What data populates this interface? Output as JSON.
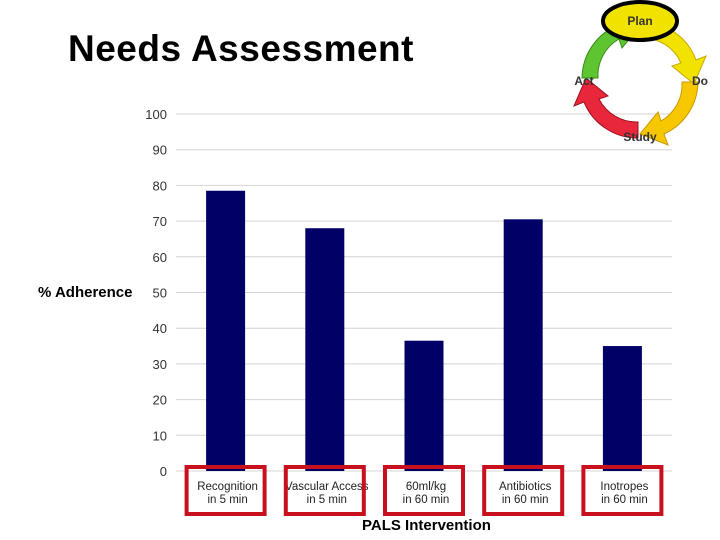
{
  "slide": {
    "title": "Needs Assessment"
  },
  "pdsa_cycle": {
    "labels": [
      "Plan",
      "Do",
      "Study",
      "Act"
    ],
    "colors": {
      "plan": "#f2e200",
      "do": "#f7c800",
      "study": "#e8283a",
      "act": "#5ec530",
      "highlight": "#000000"
    },
    "highlighted": "Plan"
  },
  "chart_data": {
    "type": "bar",
    "categories": [
      [
        "Recognition",
        "in 5 min"
      ],
      [
        "Vascular Access",
        "in 5 min"
      ],
      [
        "60ml/kg",
        "in 60 min"
      ],
      [
        "Antibiotics",
        "in 60 min"
      ],
      [
        "Inotropes",
        "in 60 min"
      ]
    ],
    "values": [
      78.5,
      68,
      36.5,
      70.5,
      35
    ],
    "xlabel": "PALS Intervention",
    "ylabel": "% Adherence",
    "ylim": [
      0,
      100
    ],
    "yticks": [
      0,
      10,
      20,
      30,
      40,
      50,
      60,
      70,
      80,
      90,
      100
    ],
    "grid": true,
    "bar_color": "#000066",
    "highlight_color": "#c8101e",
    "highlighted_categories": [
      0,
      1,
      2,
      3,
      4
    ]
  }
}
